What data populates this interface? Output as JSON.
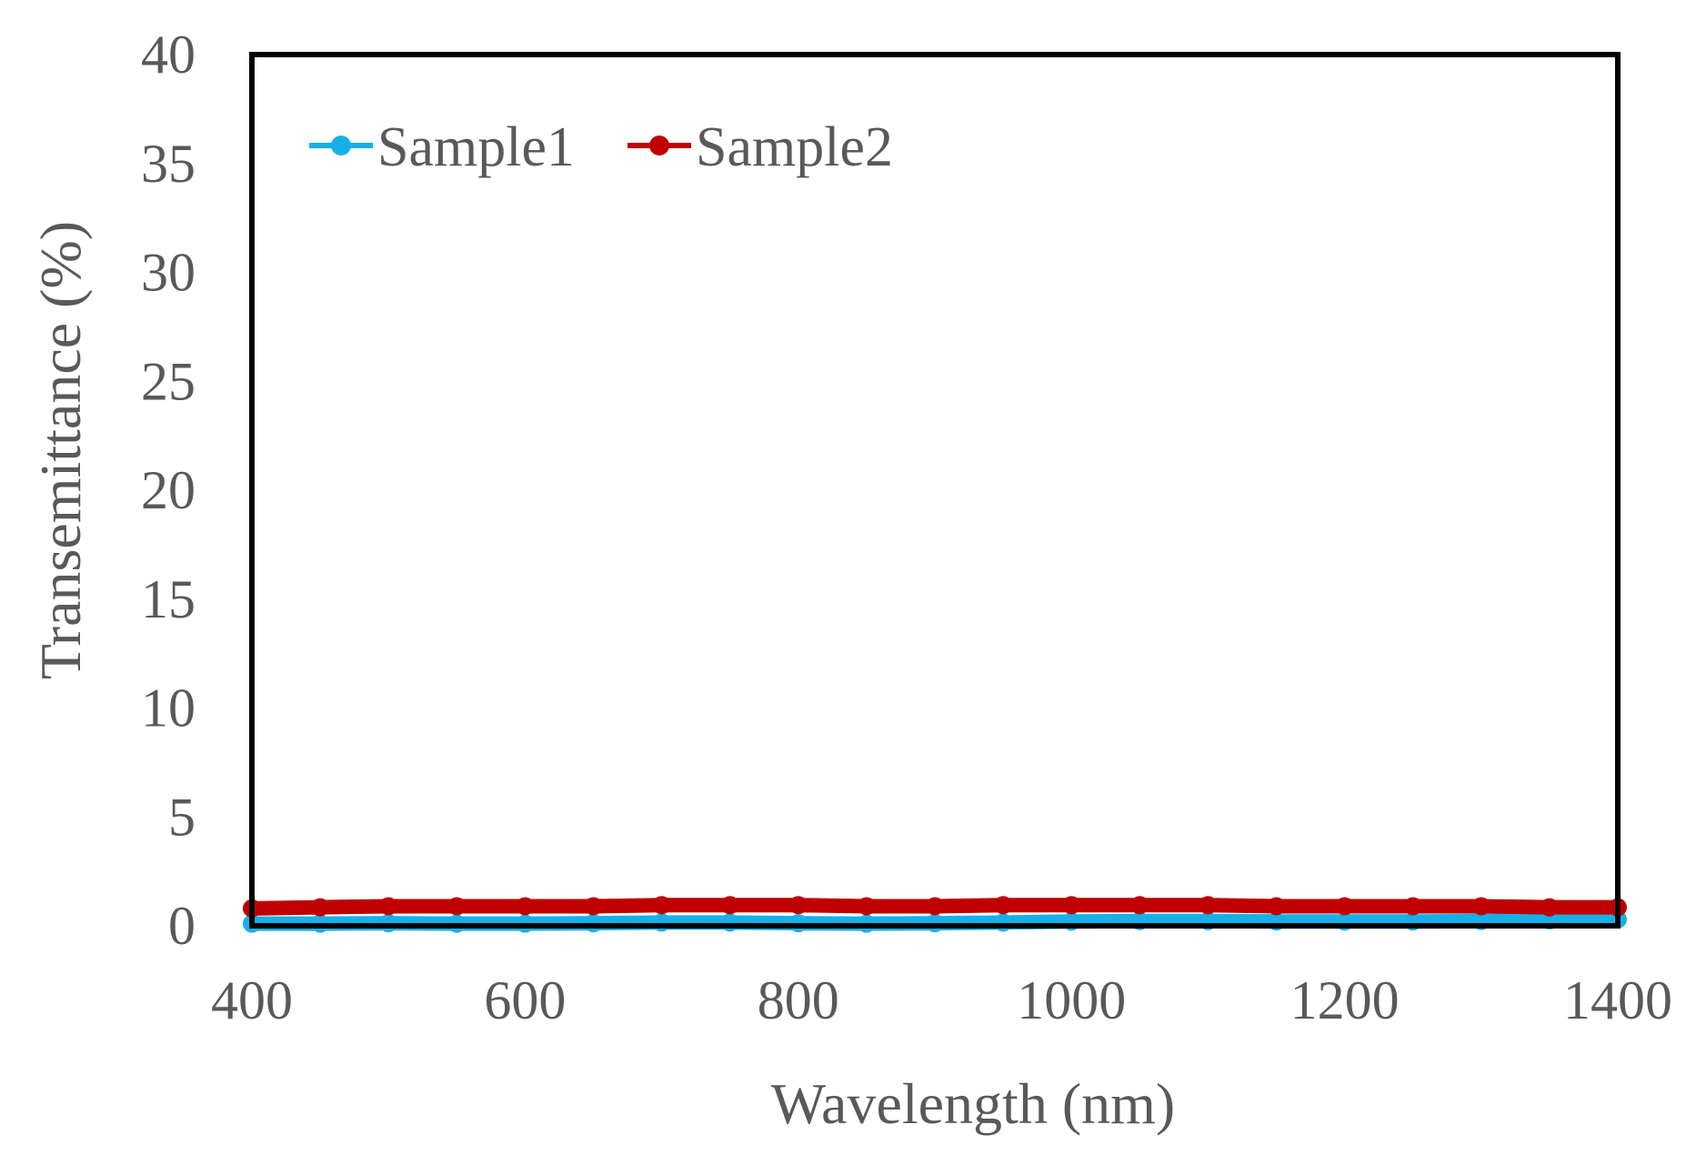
{
  "chart_data": {
    "type": "line",
    "title": "",
    "xlabel": "Wavelength (nm)",
    "ylabel": "Transemittance (%)",
    "xlim": [
      400,
      1400
    ],
    "ylim": [
      0,
      40
    ],
    "xticks": [
      400,
      600,
      800,
      1000,
      1200,
      1400
    ],
    "yticks": [
      0,
      5,
      10,
      15,
      20,
      25,
      30,
      35,
      40
    ],
    "xtick_labels": [
      "400",
      "600",
      "800",
      "1000",
      "1200",
      "1400"
    ],
    "ytick_labels": [
      "0",
      "5",
      "10",
      "15",
      "20",
      "25",
      "30",
      "35",
      "40"
    ],
    "grid": false,
    "legend_position": "top-left",
    "series": [
      {
        "name": "Sample1",
        "color": "#16b0e8",
        "x": [
          400,
          450,
          500,
          550,
          600,
          650,
          700,
          750,
          800,
          850,
          900,
          950,
          1000,
          1050,
          1100,
          1150,
          1200,
          1250,
          1300,
          1350,
          1400
        ],
        "y": [
          0.1,
          0.1,
          0.12,
          0.1,
          0.1,
          0.12,
          0.15,
          0.15,
          0.12,
          0.1,
          0.12,
          0.15,
          0.2,
          0.22,
          0.22,
          0.2,
          0.2,
          0.2,
          0.22,
          0.25,
          0.3
        ]
      },
      {
        "name": "Sample2",
        "color": "#c00000",
        "x": [
          400,
          450,
          500,
          550,
          600,
          650,
          700,
          750,
          800,
          850,
          900,
          950,
          1000,
          1050,
          1100,
          1150,
          1200,
          1250,
          1300,
          1350,
          1400
        ],
        "y": [
          0.8,
          0.85,
          0.9,
          0.9,
          0.9,
          0.9,
          0.95,
          0.95,
          0.95,
          0.9,
          0.9,
          0.95,
          0.95,
          0.95,
          0.95,
          0.9,
          0.9,
          0.9,
          0.9,
          0.85,
          0.85
        ]
      }
    ]
  }
}
